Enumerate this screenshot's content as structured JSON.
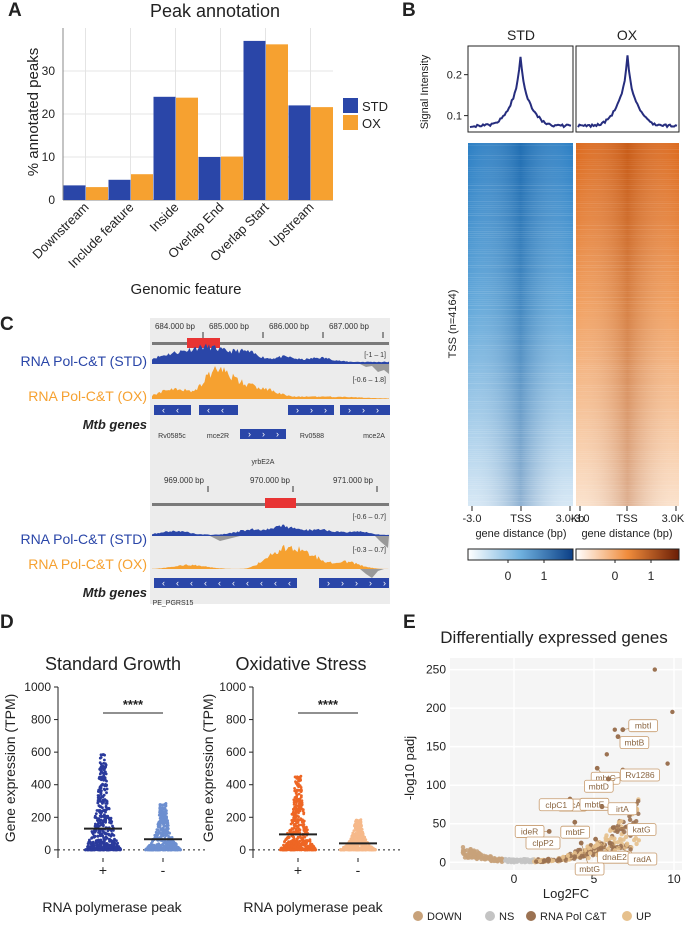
{
  "panels": {
    "A": "A",
    "B": "B",
    "C": "C",
    "D": "D",
    "E": "E"
  },
  "colors": {
    "std": "#2a46a8",
    "ox": "#f6a130",
    "heat_std": "#2c7fc4",
    "heat_ox": "#dc6a1e",
    "down": "#c8a27a",
    "ns": "#c4c4c4",
    "rnapol": "#9b7252",
    "up": "#e6c08c"
  },
  "chart_data": [
    {
      "id": "A",
      "type": "bar",
      "title": "Peak annotation",
      "xlabel": "Genomic feature",
      "ylabel": "% annotated peaks",
      "ylim": [
        0,
        40
      ],
      "yticks": [
        0,
        10,
        20,
        30
      ],
      "categories": [
        "Downstream",
        "Include feature",
        "Inside",
        "Overlap End",
        "Overlap Start",
        "Upstream"
      ],
      "series": [
        {
          "name": "STD",
          "values": [
            3.4,
            4.7,
            24.0,
            10.0,
            37.0,
            22.0
          ]
        },
        {
          "name": "OX",
          "values": [
            3.0,
            6.0,
            23.8,
            10.1,
            36.2,
            21.6
          ]
        }
      ],
      "legend_position": "right"
    },
    {
      "id": "B_profile",
      "type": "line",
      "ylabel": "Signal Intensity",
      "yticks": [
        0.1,
        0.2
      ],
      "ylim": [
        0.06,
        0.27
      ],
      "subplots": [
        "STD",
        "OX"
      ],
      "x_range": [
        -3000,
        3000
      ],
      "peak_value": 0.245,
      "baseline": 0.075
    },
    {
      "id": "B_heatmap",
      "type": "heatmap",
      "ylabel": "TSS (n=4164)",
      "xlabel": "gene distance (bp)",
      "xticks": [
        "-3.0",
        "TSS",
        "3.0Kb"
      ],
      "colorbar_ticks": [
        "0",
        "1"
      ],
      "columns": [
        "STD",
        "OX"
      ]
    },
    {
      "id": "C",
      "type": "genome_track",
      "regions": [
        {
          "coords": [
            "684.000 bp",
            "685.000 bp",
            "686.000 bp",
            "687.000 bp"
          ],
          "tracks": [
            {
              "label": "RNA Pol-C&T (STD)",
              "range": "[-1 – 1]"
            },
            {
              "label": "RNA Pol-C&T (OX)",
              "range": "[-0.6 – 1.8]"
            }
          ],
          "genes_label": "Mtb genes",
          "genes": [
            "Rv0585c",
            "mce2R",
            "Rv0588",
            "mce2A",
            "yrbE2A"
          ]
        },
        {
          "coords": [
            "969.000 bp",
            "970.000 bp",
            "971.000 bp"
          ],
          "tracks": [
            {
              "label": "RNA Pol-C&T (STD)",
              "range": "[-0.6 – 0.7]"
            },
            {
              "label": "RNA Pol-C&T (OX)",
              "range": "[-0.3 – 0.7]"
            }
          ],
          "genes_label": "Mtb genes",
          "genes": [
            "PE_PGRS15"
          ]
        }
      ]
    },
    {
      "id": "D1",
      "type": "scatter",
      "title": "Standard Growth",
      "ylabel": "Gene expression (TPM)",
      "xlabel": "RNA polymerase peak",
      "categories": [
        "+",
        "-"
      ],
      "yticks": [
        0,
        200,
        400,
        600,
        800,
        1000
      ],
      "ylim": [
        -50,
        1000
      ],
      "medians": [
        130,
        65
      ],
      "max_values": [
        590,
        285
      ],
      "significance": "****"
    },
    {
      "id": "D2",
      "type": "scatter",
      "title": "Oxidative Stress",
      "ylabel": "Gene expression (TPM)",
      "xlabel": "RNA polymerase peak",
      "categories": [
        "+",
        "-"
      ],
      "yticks": [
        0,
        200,
        400,
        600,
        800,
        1000
      ],
      "ylim": [
        -50,
        1000
      ],
      "medians": [
        95,
        40
      ],
      "max_values": [
        460,
        185
      ],
      "significance": "****"
    },
    {
      "id": "E",
      "type": "scatter",
      "title": "Differentially expressed genes",
      "xlabel": "Log2FC",
      "ylabel": "-log10 padj",
      "xlim": [
        -4,
        10.5
      ],
      "ylim": [
        -10,
        265
      ],
      "xticks": [
        0,
        5,
        10
      ],
      "yticks": [
        0,
        50,
        100,
        150,
        200,
        250
      ],
      "legend": [
        "DOWN",
        "NS",
        "RNA Pol C&T",
        "UP"
      ],
      "labeled_genes": [
        {
          "name": "mbtI",
          "x": 6.8,
          "y": 172
        },
        {
          "name": "mbtB",
          "x": 6.5,
          "y": 163
        },
        {
          "name": "mbtC",
          "x": 5.2,
          "y": 122
        },
        {
          "name": "mbtD",
          "x": 4.9,
          "y": 96
        },
        {
          "name": "Rv1286",
          "x": 5.9,
          "y": 108
        },
        {
          "name": "recA",
          "x": 3.5,
          "y": 82
        },
        {
          "name": "clpC1",
          "x": 2.7,
          "y": 72
        },
        {
          "name": "mbtE",
          "x": 4.5,
          "y": 70
        },
        {
          "name": "irtA",
          "x": 5.5,
          "y": 72
        },
        {
          "name": "ideR",
          "x": 2.2,
          "y": 40
        },
        {
          "name": "mbtF",
          "x": 3.8,
          "y": 52
        },
        {
          "name": "katG",
          "x": 6.2,
          "y": 45
        },
        {
          "name": "clpP2",
          "x": 2.5,
          "y": 25
        },
        {
          "name": "dnaE2",
          "x": 5.1,
          "y": 30
        },
        {
          "name": "radA",
          "x": 6.0,
          "y": 25
        },
        {
          "name": "mbtG",
          "x": 4.2,
          "y": 25
        }
      ]
    }
  ]
}
